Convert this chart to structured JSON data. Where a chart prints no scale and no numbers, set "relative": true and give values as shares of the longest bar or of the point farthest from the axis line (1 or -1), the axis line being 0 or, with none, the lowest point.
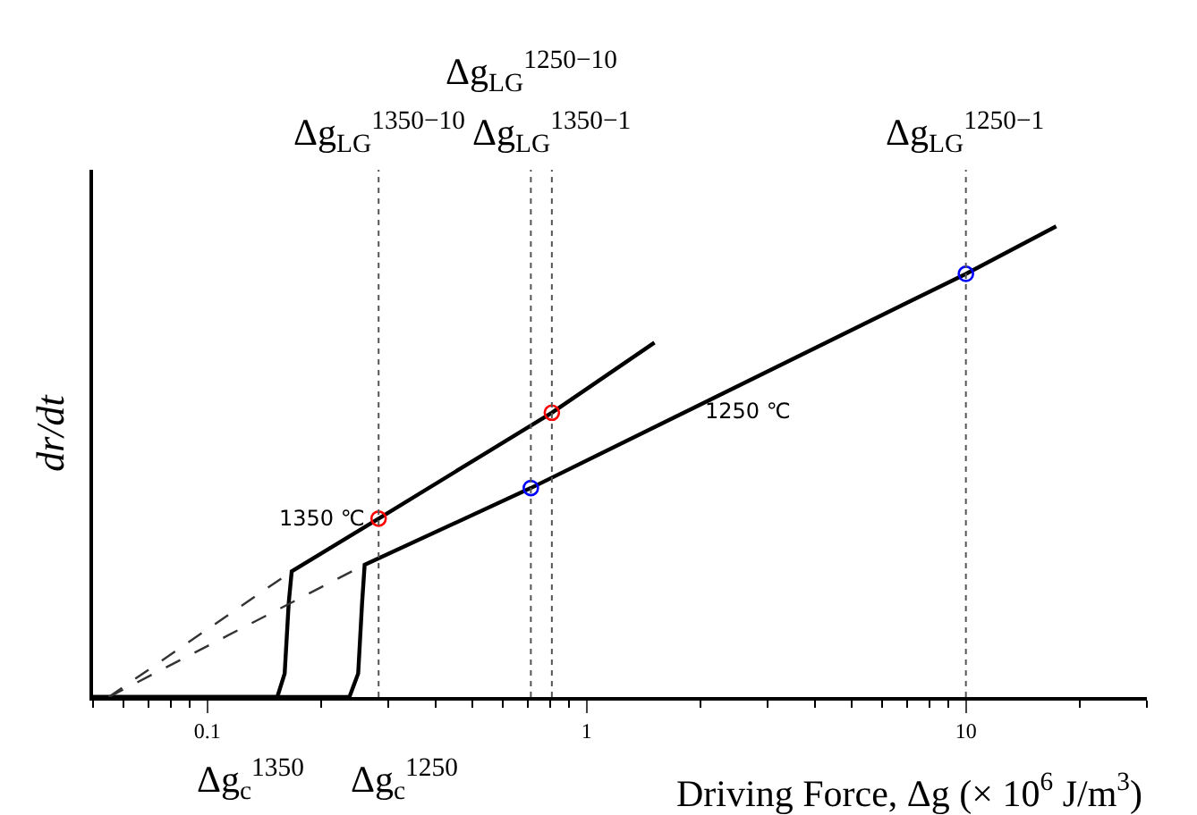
{
  "chart_data": {
    "type": "line",
    "relative": true,
    "log": "x",
    "xlim": [
      0.05,
      30
    ],
    "xticks": [
      0.1,
      1,
      10
    ],
    "legend": false,
    "xlabel": "Driving Force, Δg (× 10$^{6}$ J/m$^{3}$)",
    "ylabel": "dr/dt",
    "series": [
      {
        "name": "1350 ℃",
        "color": "#000000",
        "line_style": "solid",
        "x": [
          0.05,
          0.153,
          0.16,
          0.164,
          0.167,
          0.283,
          0.81,
          1.51
        ],
        "values": [
          0,
          0,
          0.05,
          0.2,
          0.267,
          0.379,
          0.604,
          0.753
        ]
      },
      {
        "name": "1250 ℃",
        "color": "#000000",
        "line_style": "solid",
        "x": [
          0.05,
          0.237,
          0.25,
          0.256,
          0.26,
          0.713,
          10,
          17.3
        ],
        "values": [
          0,
          0,
          0.05,
          0.2,
          0.281,
          0.444,
          0.899,
          1.0
        ]
      },
      {
        "color": "#333333",
        "line_style": "dashed",
        "x": [
          0.055,
          0.167
        ],
        "values": [
          0,
          0.267
        ]
      },
      {
        "color": "#333333",
        "line_style": "dashed",
        "x": [
          0.055,
          0.26
        ],
        "values": [
          0,
          0.281
        ]
      },
      {
        "type": "scatter",
        "color": "#ff0000",
        "marker": "circle",
        "x": [
          0.283,
          0.81
        ],
        "values": [
          0.379,
          0.604
        ]
      },
      {
        "type": "scatter",
        "color": "#0000ff",
        "marker": "circle",
        "x": [
          0.713,
          10
        ],
        "values": [
          0.444,
          0.899
        ]
      }
    ],
    "ref_lines": [
      {
        "axis": "x",
        "value": 0.283,
        "label": "Δg$_{LG}$$^{1350−10}$",
        "color": "#555555",
        "line_style": "dotted"
      },
      {
        "axis": "x",
        "value": 0.713,
        "label": "Δg$_{LG}$$^{1250−10}$",
        "color": "#555555",
        "line_style": "dotted"
      },
      {
        "axis": "x",
        "value": 0.81,
        "label": "Δg$_{LG}$$^{1350−1}$",
        "color": "#555555",
        "line_style": "dotted"
      },
      {
        "axis": "x",
        "value": 10,
        "label": "Δg$_{LG}$$^{1250−1}$",
        "color": "#555555",
        "line_style": "dotted"
      }
    ],
    "annotations": [
      "Δg$_{c}$$^{1350}$",
      "Δg$_{c}$$^{1250}$"
    ]
  }
}
